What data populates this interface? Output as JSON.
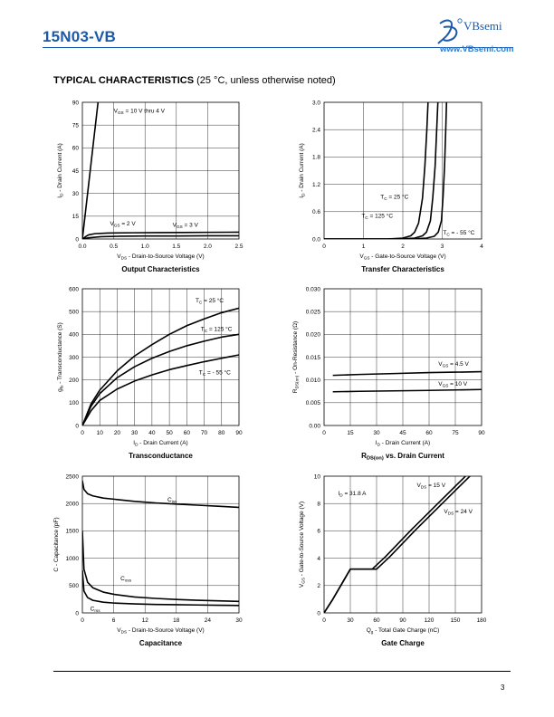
{
  "header": {
    "part_number": "15N03-VB",
    "brand": "VBsemi",
    "website": "www.VBsemi.com"
  },
  "section": {
    "title_bold": "TYPICAL CHARACTERISTICS",
    "title_rest": " (25 °C, unless otherwise noted)"
  },
  "footer": {
    "page_number": "3"
  },
  "colors": {
    "brand": "#1a5aa8",
    "link": "#2b7bd0",
    "curve": "#000000",
    "grid": "#000000"
  },
  "chart_data": [
    {
      "id": "output",
      "type": "line",
      "title": "Output Characteristics",
      "xlabel_main": "V",
      "xlabel_sub": "DS",
      "xlabel_rest": " -  Drain-to-Source Voltage (V)",
      "ylabel": "I_D - Drain Current (A)",
      "xlim": [
        0,
        2.5
      ],
      "ylim": [
        0,
        90
      ],
      "xticks": [
        "0.0",
        "0.5",
        "1.0",
        "1.5",
        "2.0",
        "2.5"
      ],
      "yticks": [
        "0",
        "15",
        "30",
        "45",
        "60",
        "75",
        "90"
      ],
      "xtick_values": [
        0,
        0.5,
        1.0,
        1.5,
        2.0,
        2.5
      ],
      "ytick_values": [
        0,
        15,
        30,
        45,
        60,
        75,
        90
      ],
      "grid": true,
      "series": [
        {
          "name": "VGS = 10 V thru 4 V",
          "x": [
            0,
            0.05,
            0.1,
            0.15,
            0.2,
            0.25
          ],
          "y": [
            0,
            18,
            36,
            54,
            72,
            90
          ]
        },
        {
          "name": "VGS = 2 V",
          "x": [
            0,
            0.1,
            0.3,
            0.6,
            1.0,
            1.5,
            2.0,
            2.5
          ],
          "y": [
            0,
            0.8,
            1.5,
            1.8,
            2.0,
            2.0,
            2.1,
            2.1
          ]
        },
        {
          "name": "VGS = 3 V",
          "x": [
            0,
            0.05,
            0.1,
            0.2,
            0.4,
            0.8,
            1.2,
            1.6,
            2.0,
            2.5
          ],
          "y": [
            0,
            1.5,
            2.7,
            3.5,
            3.9,
            4.1,
            4.2,
            4.3,
            4.4,
            4.5
          ]
        }
      ],
      "annotations": [
        {
          "main": "V",
          "sub": "GS",
          "rest": " = 10 V thru 4 V",
          "x": 0.5,
          "y": 83
        },
        {
          "main": "V",
          "sub": "GS",
          "rest": " = 2 V",
          "x": 0.44,
          "y": 9
        },
        {
          "main": "V",
          "sub": "GS",
          "rest": " = 3 V",
          "x": 1.44,
          "y": 8
        }
      ]
    },
    {
      "id": "transfer",
      "type": "line",
      "title": "Transfer Characteristics",
      "xlabel_main": "V",
      "xlabel_sub": "GS",
      "xlabel_rest": " -  Gate-to-Source Voltage (V)",
      "ylabel": "I_D - Drain Current (A)",
      "xlim": [
        0,
        4
      ],
      "ylim": [
        0,
        3.0
      ],
      "xticks": [
        "0",
        "1",
        "2",
        "3",
        "4"
      ],
      "yticks": [
        "0.0",
        "0.6",
        "1.2",
        "1.8",
        "2.4",
        "3.0"
      ],
      "xtick_values": [
        0,
        1,
        2,
        3,
        4
      ],
      "ytick_values": [
        0,
        0.6,
        1.2,
        1.8,
        2.4,
        3.0
      ],
      "grid": true,
      "series": [
        {
          "name": "TC = 125 °C",
          "x": [
            0,
            1.6,
            2.0,
            2.2,
            2.3,
            2.4,
            2.5,
            2.56,
            2.61,
            2.64
          ],
          "y": [
            0,
            0,
            0.02,
            0.07,
            0.15,
            0.35,
            0.9,
            1.6,
            2.4,
            3.0
          ]
        },
        {
          "name": "TC = 25 °C",
          "x": [
            0,
            1.9,
            2.3,
            2.5,
            2.6,
            2.7,
            2.76,
            2.82,
            2.86,
            2.89
          ],
          "y": [
            0,
            0,
            0.02,
            0.07,
            0.15,
            0.4,
            0.9,
            1.6,
            2.4,
            3.0
          ]
        },
        {
          "name": "TC = - 55 °C",
          "x": [
            0,
            2.2,
            2.6,
            2.8,
            2.9,
            2.98,
            3.02,
            3.06,
            3.09,
            3.11
          ],
          "y": [
            0,
            0,
            0.02,
            0.06,
            0.15,
            0.4,
            0.9,
            1.6,
            2.4,
            3.0
          ]
        }
      ],
      "annotations": [
        {
          "main": "T",
          "sub": "C",
          "rest": " = 25 °C",
          "x": 1.43,
          "y": 0.88
        },
        {
          "main": "T",
          "sub": "C",
          "rest": " = 125 °C",
          "x": 0.95,
          "y": 0.47
        },
        {
          "main": "T",
          "sub": "C",
          "rest": " = - 55 °C",
          "x": 3.02,
          "y": 0.1
        }
      ]
    },
    {
      "id": "transconductance",
      "type": "line",
      "title": "Transconductance",
      "xlabel_main": "I",
      "xlabel_sub": "D",
      "xlabel_rest": " -  Drain Current (A)",
      "ylabel": "gfs - Transconductance (S)",
      "xlim": [
        0,
        90
      ],
      "ylim": [
        0,
        600
      ],
      "xticks": [
        "0",
        "10",
        "20",
        "30",
        "40",
        "50",
        "60",
        "70",
        "80",
        "90"
      ],
      "yticks": [
        "0",
        "100",
        "200",
        "300",
        "400",
        "500",
        "600"
      ],
      "xtick_values": [
        0,
        10,
        20,
        30,
        40,
        50,
        60,
        70,
        80,
        90
      ],
      "ytick_values": [
        0,
        100,
        200,
        300,
        400,
        500,
        600
      ],
      "grid": true,
      "series": [
        {
          "name": "TC = 25 °C",
          "x": [
            0,
            5,
            10,
            20,
            30,
            40,
            50,
            60,
            70,
            80,
            90
          ],
          "y": [
            0,
            95,
            155,
            240,
            305,
            355,
            400,
            438,
            468,
            495,
            515
          ]
        },
        {
          "name": "TC = 125 °C",
          "x": [
            0,
            5,
            10,
            20,
            30,
            40,
            50,
            60,
            70,
            80,
            90
          ],
          "y": [
            0,
            85,
            140,
            210,
            258,
            295,
            325,
            350,
            370,
            388,
            400
          ]
        },
        {
          "name": "TC = - 55 °C",
          "x": [
            0,
            5,
            10,
            20,
            30,
            40,
            50,
            60,
            70,
            80,
            90
          ],
          "y": [
            0,
            65,
            110,
            160,
            195,
            222,
            245,
            263,
            280,
            295,
            310
          ]
        }
      ],
      "annotations": [
        {
          "main": "T",
          "sub": "C",
          "rest": " = 25 °C",
          "x": 65,
          "y": 540
        },
        {
          "main": "T",
          "sub": "C",
          "rest": " = 125 °C",
          "x": 68,
          "y": 415
        },
        {
          "main": "T",
          "sub": "C",
          "rest": " = - 55 °C",
          "x": 67,
          "y": 225
        }
      ]
    },
    {
      "id": "rdson",
      "type": "line",
      "title_main": "R",
      "title_sub": "DS(on)",
      "title_rest": " vs. Drain Current",
      "title": "RDS(on) vs. Drain Current",
      "xlabel_main": "I",
      "xlabel_sub": "D",
      "xlabel_rest": " - Drain Current (A)",
      "ylabel": "RDS(on) - On-Resistance (Ω)",
      "xlim": [
        0,
        90
      ],
      "ylim": [
        0,
        0.03
      ],
      "xticks": [
        "0",
        "15",
        "30",
        "45",
        "60",
        "75",
        "90"
      ],
      "yticks": [
        "0.00",
        "0.005",
        "0.010",
        "0.015",
        "0.020",
        "0.025",
        "0.030"
      ],
      "xtick_values": [
        0,
        15,
        30,
        45,
        60,
        75,
        90
      ],
      "ytick_values": [
        0,
        0.005,
        0.01,
        0.015,
        0.02,
        0.025,
        0.03
      ],
      "grid": true,
      "series": [
        {
          "name": "VGS = 4.5 V",
          "x": [
            5,
            20,
            40,
            60,
            75,
            90
          ],
          "y": [
            0.011,
            0.0112,
            0.0114,
            0.0116,
            0.0117,
            0.0118
          ]
        },
        {
          "name": "VGS = 10 V",
          "x": [
            5,
            20,
            40,
            60,
            75,
            90
          ],
          "y": [
            0.0074,
            0.0075,
            0.0076,
            0.0077,
            0.0078,
            0.0079
          ]
        }
      ],
      "annotations": [
        {
          "main": "V",
          "sub": "GS",
          "rest": " = 4.5 V",
          "x": 65.3,
          "y": 0.0131
        },
        {
          "main": "V",
          "sub": "GS",
          "rest": " = 10 V",
          "x": 65.3,
          "y": 0.0087
        }
      ]
    },
    {
      "id": "capacitance",
      "type": "line",
      "title": "Capacitance",
      "xlabel_main": "V",
      "xlabel_sub": "DS",
      "xlabel_rest": " -  Drain-to-Source Voltage (V)",
      "ylabel": "C - Capacitance (pF)",
      "xlim": [
        0,
        30
      ],
      "ylim": [
        0,
        2500
      ],
      "xticks": [
        "0",
        "6",
        "12",
        "18",
        "24",
        "30"
      ],
      "yticks": [
        "0",
        "500",
        "1000",
        "1500",
        "2000",
        "2500"
      ],
      "xtick_values": [
        0,
        6,
        12,
        18,
        24,
        30
      ],
      "ytick_values": [
        0,
        500,
        1000,
        1500,
        2000,
        2500
      ],
      "grid": true,
      "series": [
        {
          "name": "Ciss",
          "x": [
            0,
            0.3,
            1,
            2,
            4,
            6,
            10,
            14,
            18,
            22,
            26,
            30
          ],
          "y": [
            2420,
            2260,
            2180,
            2140,
            2100,
            2080,
            2040,
            2010,
            1990,
            1970,
            1950,
            1930
          ]
        },
        {
          "name": "Coss",
          "x": [
            0,
            0.3,
            1,
            2,
            4,
            6,
            10,
            14,
            18,
            22,
            26,
            30
          ],
          "y": [
            1500,
            800,
            560,
            460,
            380,
            340,
            290,
            265,
            245,
            230,
            220,
            210
          ]
        },
        {
          "name": "Crss",
          "x": [
            0,
            0.3,
            1,
            2,
            4,
            6,
            10,
            14,
            18,
            22,
            26,
            30
          ],
          "y": [
            780,
            400,
            280,
            230,
            195,
            180,
            165,
            155,
            150,
            145,
            140,
            135
          ]
        }
      ],
      "annotations": [
        {
          "main": "C",
          "sub": "iss",
          "rest": "",
          "x": 16.3,
          "y": 2040
        },
        {
          "main": "C",
          "sub": "oss",
          "rest": "",
          "x": 7.3,
          "y": 600
        },
        {
          "main": "C",
          "sub": "rss",
          "rest": "",
          "x": 1.5,
          "y": 40
        }
      ]
    },
    {
      "id": "gatecharge",
      "type": "line",
      "title": "Gate Charge",
      "xlabel_main": "Q",
      "xlabel_sub": "g",
      "xlabel_rest": " -  Total Gate Charge (nC)",
      "ylabel": "VGS - Gate-to-Source Voltage (V)",
      "xlim": [
        0,
        180
      ],
      "ylim": [
        0,
        10
      ],
      "xticks": [
        "0",
        "30",
        "60",
        "90",
        "120",
        "150",
        "180"
      ],
      "yticks": [
        "0",
        "2",
        "4",
        "6",
        "8",
        "10"
      ],
      "xtick_values": [
        0,
        30,
        60,
        90,
        120,
        150,
        180
      ],
      "ytick_values": [
        0,
        2,
        4,
        6,
        8,
        10
      ],
      "grid": true,
      "series": [
        {
          "name": "VDS = 15 V",
          "x": [
            0,
            5,
            10,
            20,
            30,
            55,
            70,
            100,
            130,
            160,
            177
          ],
          "y": [
            0,
            0.5,
            1.0,
            2.1,
            3.2,
            3.2,
            4.1,
            6.1,
            8.0,
            9.9,
            11.0
          ]
        },
        {
          "name": "VDS = 24 V",
          "x": [
            0,
            5,
            10,
            20,
            30,
            60,
            75,
            105,
            135,
            165,
            182
          ],
          "y": [
            0,
            0.5,
            1.0,
            2.1,
            3.2,
            3.2,
            4.1,
            6.1,
            8.0,
            9.9,
            11.0
          ]
        }
      ],
      "annotations": [
        {
          "main": "I",
          "sub": "D",
          "rest": " = 31.8 A",
          "x": 16,
          "y": 8.6
        },
        {
          "main": "V",
          "sub": "DS",
          "rest": " = 15 V",
          "x": 106,
          "y": 9.2
        },
        {
          "main": "V",
          "sub": "DS",
          "rest": " = 24 V",
          "x": 137,
          "y": 7.3
        }
      ]
    }
  ]
}
